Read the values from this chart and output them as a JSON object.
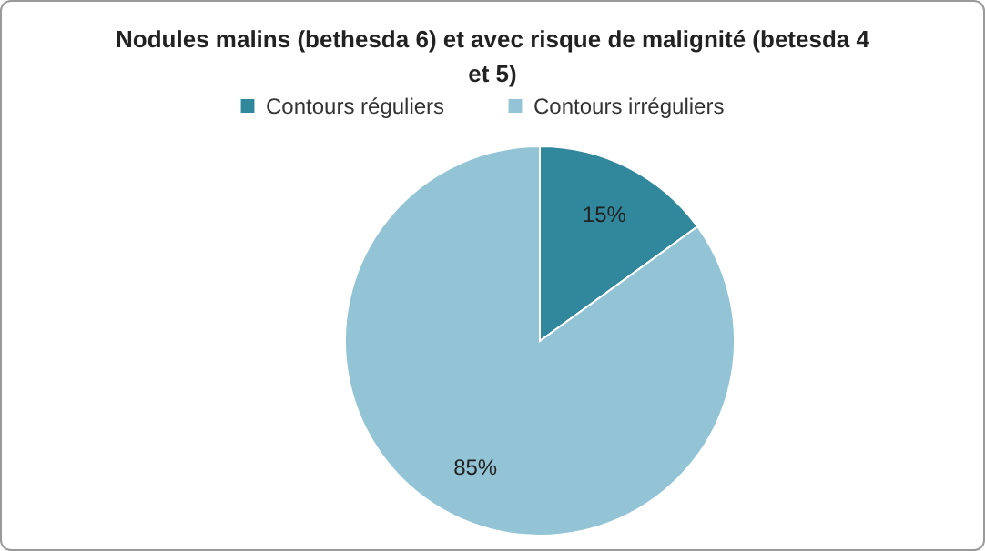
{
  "chart_data": {
    "type": "pie",
    "title": "Nodules malins (bethesda 6) et avec risque de malignité (betesda 4 et 5)",
    "categories": [
      "Contours réguliers",
      "Contours irréguliers"
    ],
    "values": [
      15,
      85
    ],
    "colors": [
      "#31889c",
      "#93c4d6"
    ],
    "value_labels": [
      "15%",
      "85%"
    ],
    "legend": "top"
  }
}
